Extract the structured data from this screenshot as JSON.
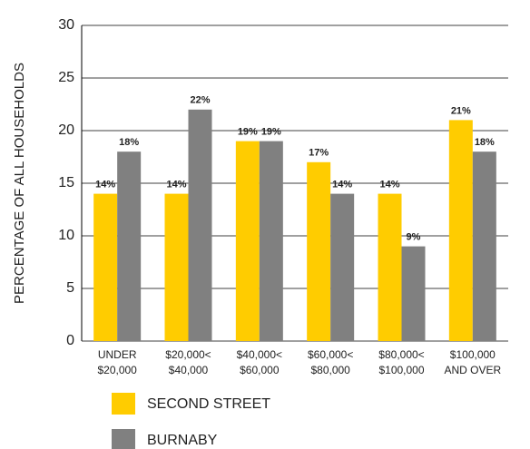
{
  "chart_data": {
    "type": "bar",
    "y_label": "PERCENTAGE OF ALL HOUSEHOLDS",
    "categories": [
      [
        "UNDER",
        "$20,000"
      ],
      [
        "$20,000<",
        "$40,000"
      ],
      [
        "$40,000<",
        "$60,000"
      ],
      [
        "$60,000<",
        "$80,000"
      ],
      [
        "$80,000<",
        "$100,000"
      ],
      [
        "$100,000",
        "AND OVER"
      ]
    ],
    "series": [
      {
        "name": "SECOND STREET",
        "color": "#ffcc00",
        "values": [
          14,
          14,
          19,
          17,
          14,
          21
        ],
        "value_labels": [
          "14%",
          "14%",
          "19%",
          "17%",
          "14%",
          "21%"
        ]
      },
      {
        "name": "BURNABY",
        "color": "#808080",
        "values": [
          18,
          22,
          19,
          14,
          9,
          18
        ],
        "value_labels": [
          "18%",
          "22%",
          "19%",
          "14%",
          "9%",
          "18%"
        ]
      }
    ],
    "ylim": [
      0,
      30
    ],
    "yticks": [
      0,
      5,
      10,
      15,
      20,
      25,
      30
    ],
    "grid": true
  }
}
